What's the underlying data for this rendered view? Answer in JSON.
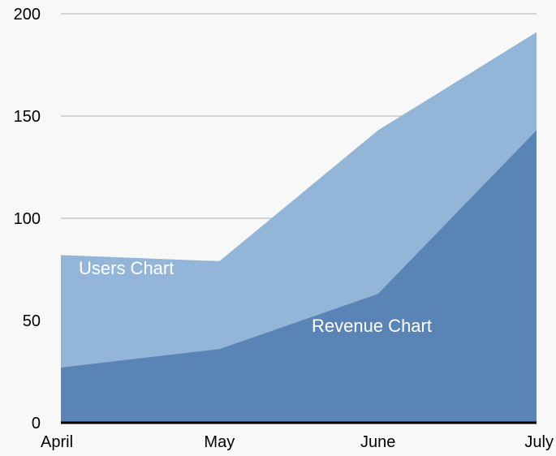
{
  "chart_data": {
    "type": "area",
    "stacked": false,
    "categories": [
      "April",
      "May",
      "June",
      "July"
    ],
    "series": [
      {
        "name": "Users Chart",
        "values": [
          82,
          79,
          143,
          191
        ],
        "color": "#93b5d7"
      },
      {
        "name": "Revenue Chart",
        "values": [
          27,
          36,
          63,
          143
        ],
        "color": "#5b84b6"
      }
    ],
    "ylim": [
      0,
      200
    ],
    "yticks": [
      "0",
      "50",
      "100",
      "150",
      "200"
    ],
    "grid": true,
    "grid_color": "#b0b0b0",
    "axis_color": "#000000",
    "background": "#f8f8f8"
  }
}
